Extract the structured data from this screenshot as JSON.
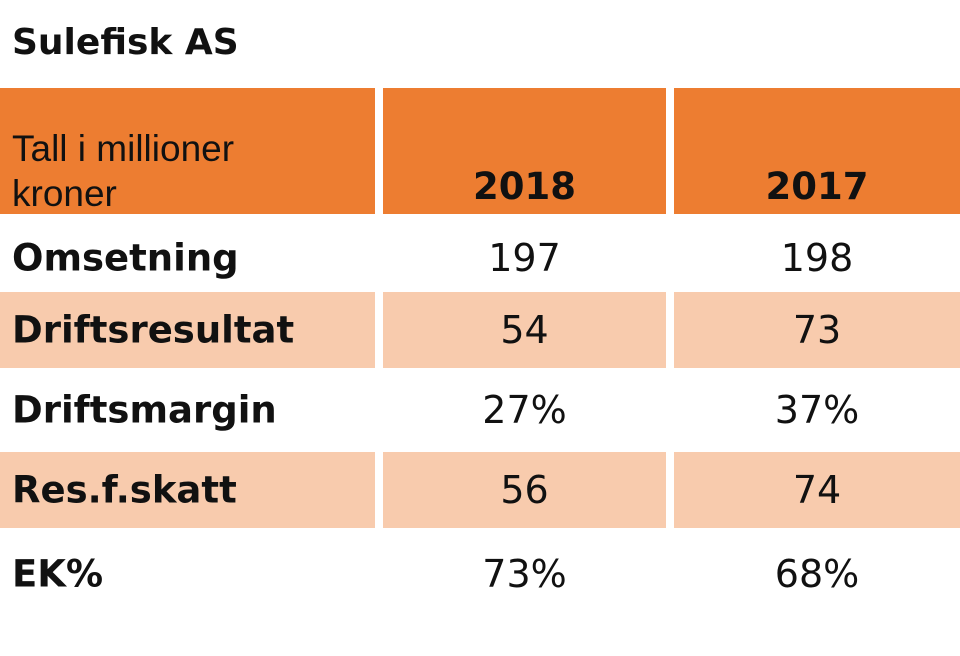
{
  "title": "Sulefisk AS",
  "chart_data": {
    "type": "table",
    "title": "Sulefisk AS",
    "header": {
      "label": "Tall i millioner kroner",
      "columns": [
        "2018",
        "2017"
      ]
    },
    "rows": [
      {
        "label": "Omsetning",
        "values": [
          "197",
          "198"
        ],
        "shaded": false
      },
      {
        "label": "Driftsresultat",
        "values": [
          "54",
          "73"
        ],
        "shaded": true
      },
      {
        "label": "Driftsmargin",
        "values": [
          "27%",
          "37%"
        ],
        "shaded": false
      },
      {
        "label": "Res.f.skatt",
        "values": [
          "56",
          "74"
        ],
        "shaded": true
      },
      {
        "label": "EK%",
        "values": [
          "73%",
          "68%"
        ],
        "shaded": false
      }
    ]
  },
  "colors": {
    "header": "#ED7D31",
    "shade": "#F8CBAD",
    "text": "#111111"
  }
}
